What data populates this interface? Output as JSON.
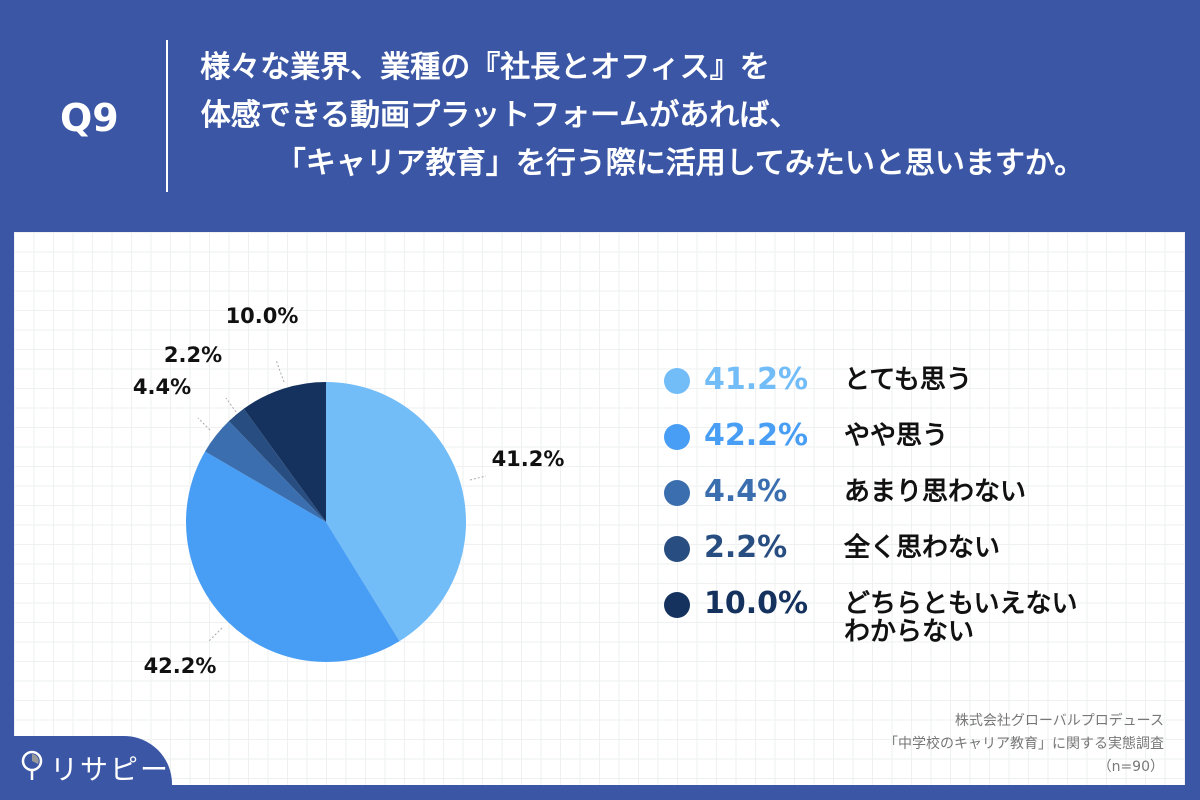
{
  "header": {
    "question": "Q9",
    "title_lines": [
      "様々な業界、業種の『社長とオフィス』を",
      "体感できる動画プラットフォームがあれば、",
      "「キャリア教育」を行う際に活用してみたいと思いますか。"
    ]
  },
  "chart_data": {
    "type": "pie",
    "title": "様々な業界、業種の『社長とオフィス』を体感できる動画プラットフォームがあれば、「キャリア教育」を行う際に活用してみたいと思いますか。",
    "slices": [
      {
        "label": "とても思う",
        "value": 41.2,
        "display": "41.2%",
        "color": "#72bcf8"
      },
      {
        "label": "やや思う",
        "value": 42.2,
        "display": "42.2%",
        "color": "#489ef5"
      },
      {
        "label": "あまり思わない",
        "value": 4.4,
        "display": "4.4%",
        "color": "#3a6eae"
      },
      {
        "label": "全く思わない",
        "value": 2.2,
        "display": "2.2%",
        "color": "#284d80"
      },
      {
        "label": "どちらともいえない わからない",
        "label_lines": [
          "どちらともいえない",
          "わからない"
        ],
        "value": 10.0,
        "display": "10.0%",
        "color": "#15325e"
      }
    ],
    "legend_position": "right"
  },
  "source": {
    "lines": [
      "株式会社グローバルプロデュース",
      "「中学校のキャリア教育」に関する実態調査",
      "（n=90）"
    ]
  },
  "logo": {
    "text": "リサピー"
  }
}
